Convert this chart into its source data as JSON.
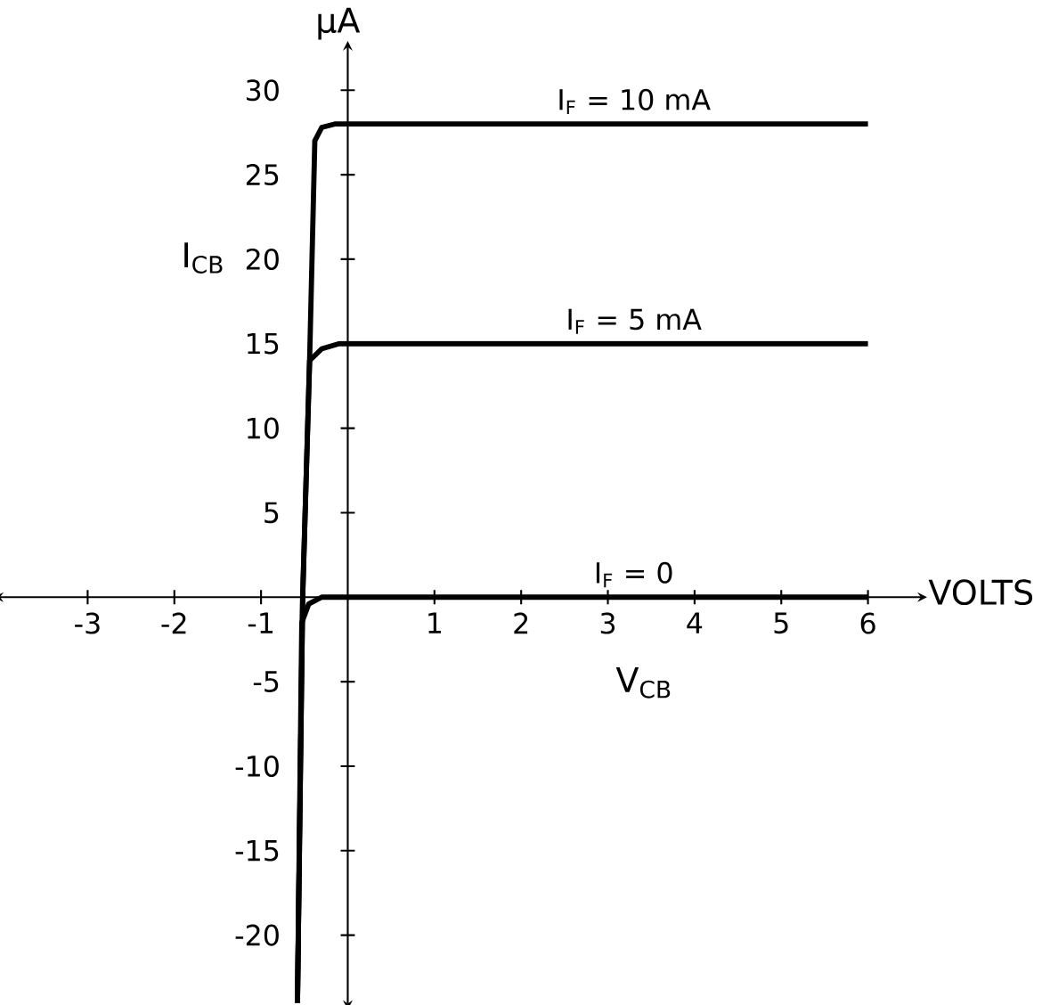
{
  "chart_data": {
    "type": "line",
    "xlabel": "V$_{CB}$",
    "ylabel": "I$_{CB}$",
    "annotations": [
      "μA",
      "VOLTS"
    ],
    "xlim": [
      -4,
      6.6
    ],
    "ylim": [
      -24,
      32.5
    ],
    "xticks": [
      -3,
      -2,
      -1,
      1,
      2,
      3,
      4,
      5,
      6
    ],
    "yticks": [
      -20,
      -15,
      -10,
      -5,
      5,
      10,
      15,
      20,
      25,
      30
    ],
    "grid": false,
    "series": [
      {
        "name": "I$_{F}$ = 10 mA",
        "color": "#000000",
        "x": [
          -0.58,
          -0.52,
          -0.44,
          -0.38,
          -0.3,
          -0.15,
          0,
          6
        ],
        "values": [
          -24,
          0,
          14,
          27,
          27.8,
          28,
          28,
          28
        ]
      },
      {
        "name": "I$_{F}$ = 5 mA",
        "color": "#000000",
        "x": [
          -0.58,
          -0.52,
          -0.44,
          -0.3,
          -0.1,
          0,
          6
        ],
        "values": [
          -24,
          0,
          14,
          14.7,
          15,
          15,
          15
        ]
      },
      {
        "name": "I$_{F}$ = 0",
        "color": "#000000",
        "x": [
          -0.58,
          -0.53,
          -0.45,
          -0.3,
          0,
          6
        ],
        "values": [
          -24,
          -1.5,
          -0.4,
          0,
          0,
          0
        ]
      }
    ]
  }
}
